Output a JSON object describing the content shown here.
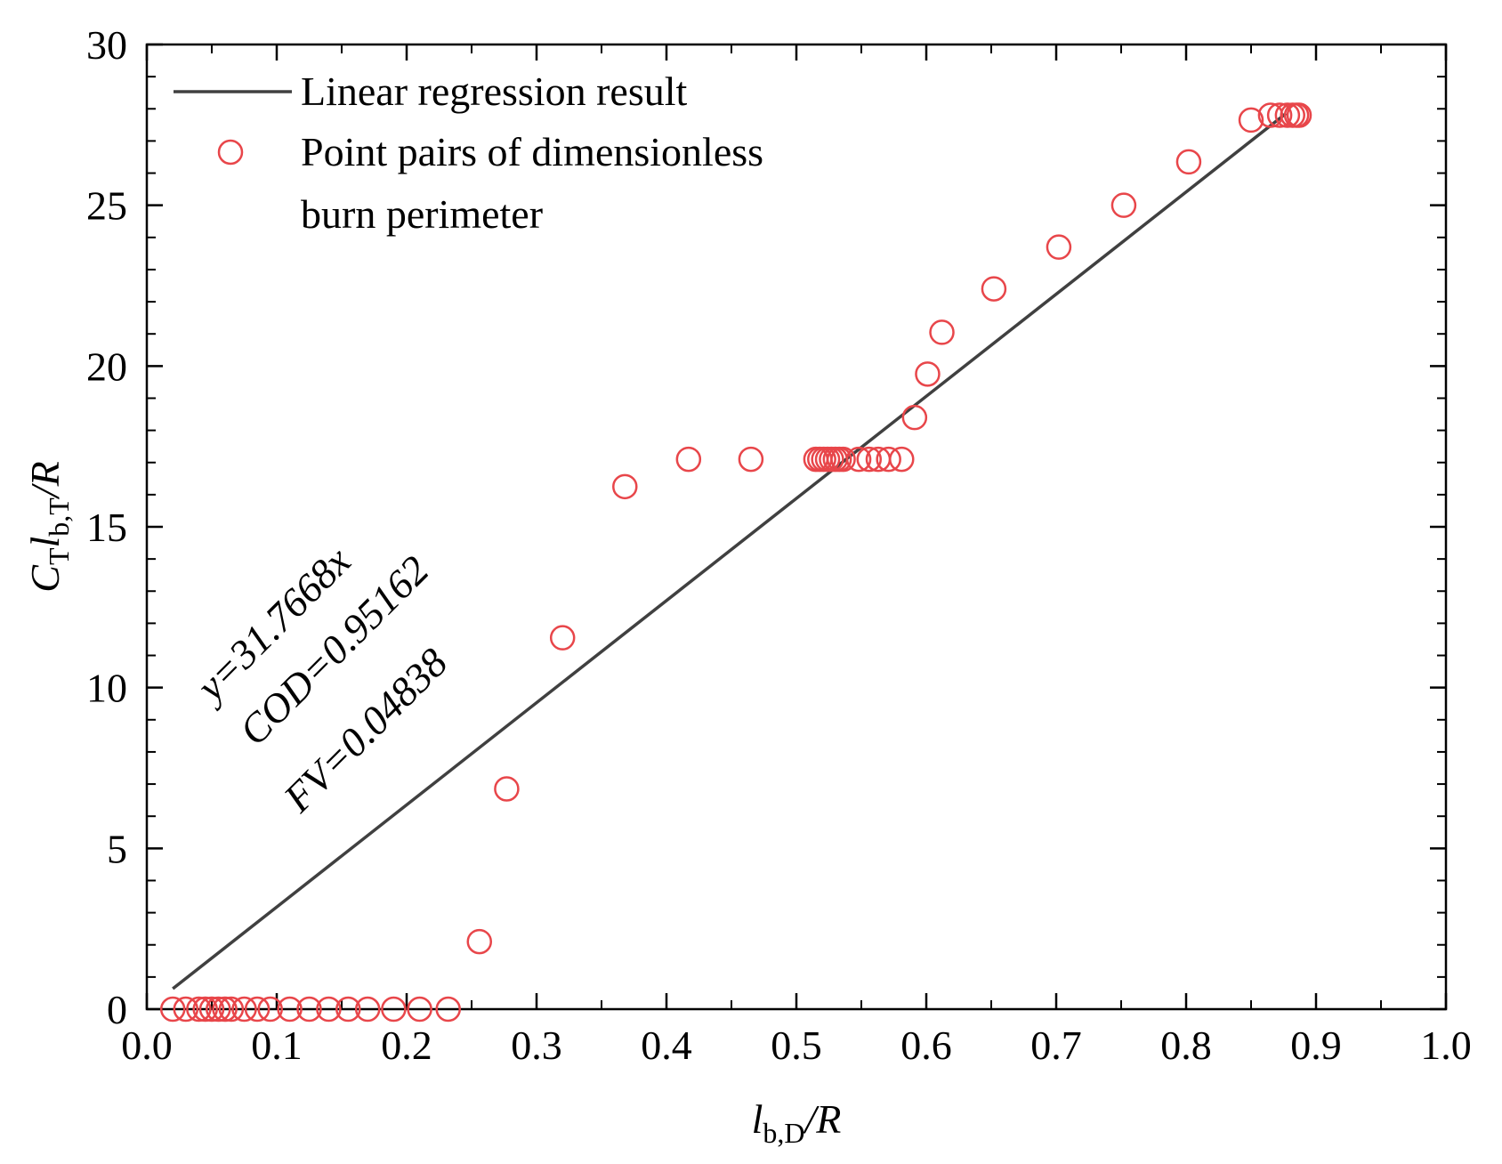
{
  "chart_data": {
    "type": "scatter",
    "title": "",
    "xlim": [
      0.0,
      1.0
    ],
    "ylim": [
      0,
      30
    ],
    "x_ticks": [
      0.0,
      0.1,
      0.2,
      0.3,
      0.4,
      0.5,
      0.6,
      0.7,
      0.8,
      0.9,
      1.0
    ],
    "x_tick_labels": [
      "0.0",
      "0.1",
      "0.2",
      "0.3",
      "0.4",
      "0.5",
      "0.6",
      "0.7",
      "0.8",
      "0.9",
      "1.0"
    ],
    "y_ticks": [
      0,
      5,
      10,
      15,
      20,
      25,
      30
    ],
    "y_tick_labels": [
      "0",
      "5",
      "10",
      "15",
      "20",
      "25",
      "30"
    ],
    "xlabel": {
      "main": "l",
      "sub": "b,D",
      "rest": "/R"
    },
    "ylabel": {
      "c": "C",
      "c_sub": "T",
      "l": "l",
      "l_sub": "b,T",
      "rest": "/R"
    },
    "legend": {
      "position": "top-left",
      "line_label": "Linear regression result",
      "scatter_label_line1": "Point pairs of dimensionless",
      "scatter_label_line2": "burn perimeter"
    },
    "annotation": {
      "equation": "y=31.7668x",
      "cod": "COD=0.95162",
      "fv": "FV=0.04838",
      "rotation": "diagonal"
    },
    "colors": {
      "line": "#404040",
      "points": "#e8464a",
      "axis": "#000000"
    },
    "series": [
      {
        "name": "Linear regression result",
        "kind": "line",
        "slope": 31.7668,
        "x": [
          0.02,
          0.877
        ]
      },
      {
        "name": "Point pairs of dimensionless burn perimeter",
        "kind": "scatter",
        "points": [
          [
            0.02,
            0
          ],
          [
            0.03,
            0
          ],
          [
            0.04,
            0
          ],
          [
            0.045,
            0
          ],
          [
            0.05,
            0
          ],
          [
            0.055,
            0
          ],
          [
            0.06,
            0
          ],
          [
            0.065,
            0
          ],
          [
            0.075,
            0
          ],
          [
            0.085,
            0
          ],
          [
            0.095,
            0
          ],
          [
            0.11,
            0
          ],
          [
            0.125,
            0
          ],
          [
            0.14,
            0
          ],
          [
            0.155,
            0
          ],
          [
            0.17,
            0
          ],
          [
            0.19,
            0
          ],
          [
            0.21,
            0
          ],
          [
            0.232,
            0
          ],
          [
            0.256,
            2.1
          ],
          [
            0.277,
            6.85
          ],
          [
            0.32,
            11.55
          ],
          [
            0.368,
            16.25
          ],
          [
            0.417,
            17.1
          ],
          [
            0.465,
            17.1
          ],
          [
            0.515,
            17.1
          ],
          [
            0.518,
            17.1
          ],
          [
            0.521,
            17.1
          ],
          [
            0.524,
            17.1
          ],
          [
            0.527,
            17.1
          ],
          [
            0.53,
            17.1
          ],
          [
            0.533,
            17.1
          ],
          [
            0.536,
            17.1
          ],
          [
            0.548,
            17.1
          ],
          [
            0.556,
            17.1
          ],
          [
            0.563,
            17.1
          ],
          [
            0.571,
            17.1
          ],
          [
            0.581,
            17.1
          ],
          [
            0.591,
            18.4
          ],
          [
            0.601,
            19.75
          ],
          [
            0.612,
            21.05
          ],
          [
            0.652,
            22.4
          ],
          [
            0.702,
            23.7
          ],
          [
            0.752,
            25.0
          ],
          [
            0.802,
            26.35
          ],
          [
            0.85,
            27.65
          ],
          [
            0.865,
            27.8
          ],
          [
            0.872,
            27.8
          ],
          [
            0.878,
            27.8
          ],
          [
            0.882,
            27.8
          ],
          [
            0.885,
            27.8
          ],
          [
            0.887,
            27.8
          ]
        ]
      }
    ]
  }
}
